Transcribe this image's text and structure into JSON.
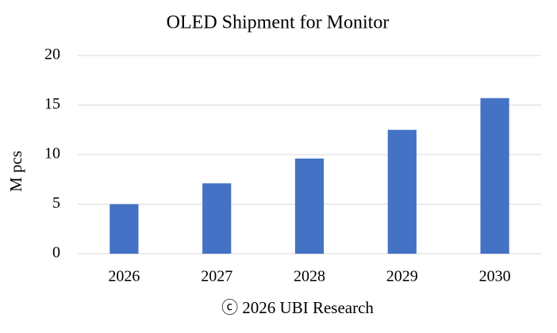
{
  "chart_data": {
    "type": "bar",
    "title": "OLED Shipment for Monitor",
    "y_label": "M pcs",
    "footer": "ⓒ 2026 UBI Research",
    "categories": [
      "2026",
      "2027",
      "2028",
      "2029",
      "2030"
    ],
    "values": [
      5.0,
      7.1,
      9.6,
      12.5,
      15.7
    ],
    "color": "#4472c4",
    "ylim": [
      0,
      20
    ],
    "yticks": [
      0,
      5,
      10,
      15,
      20
    ],
    "grid": true
  }
}
